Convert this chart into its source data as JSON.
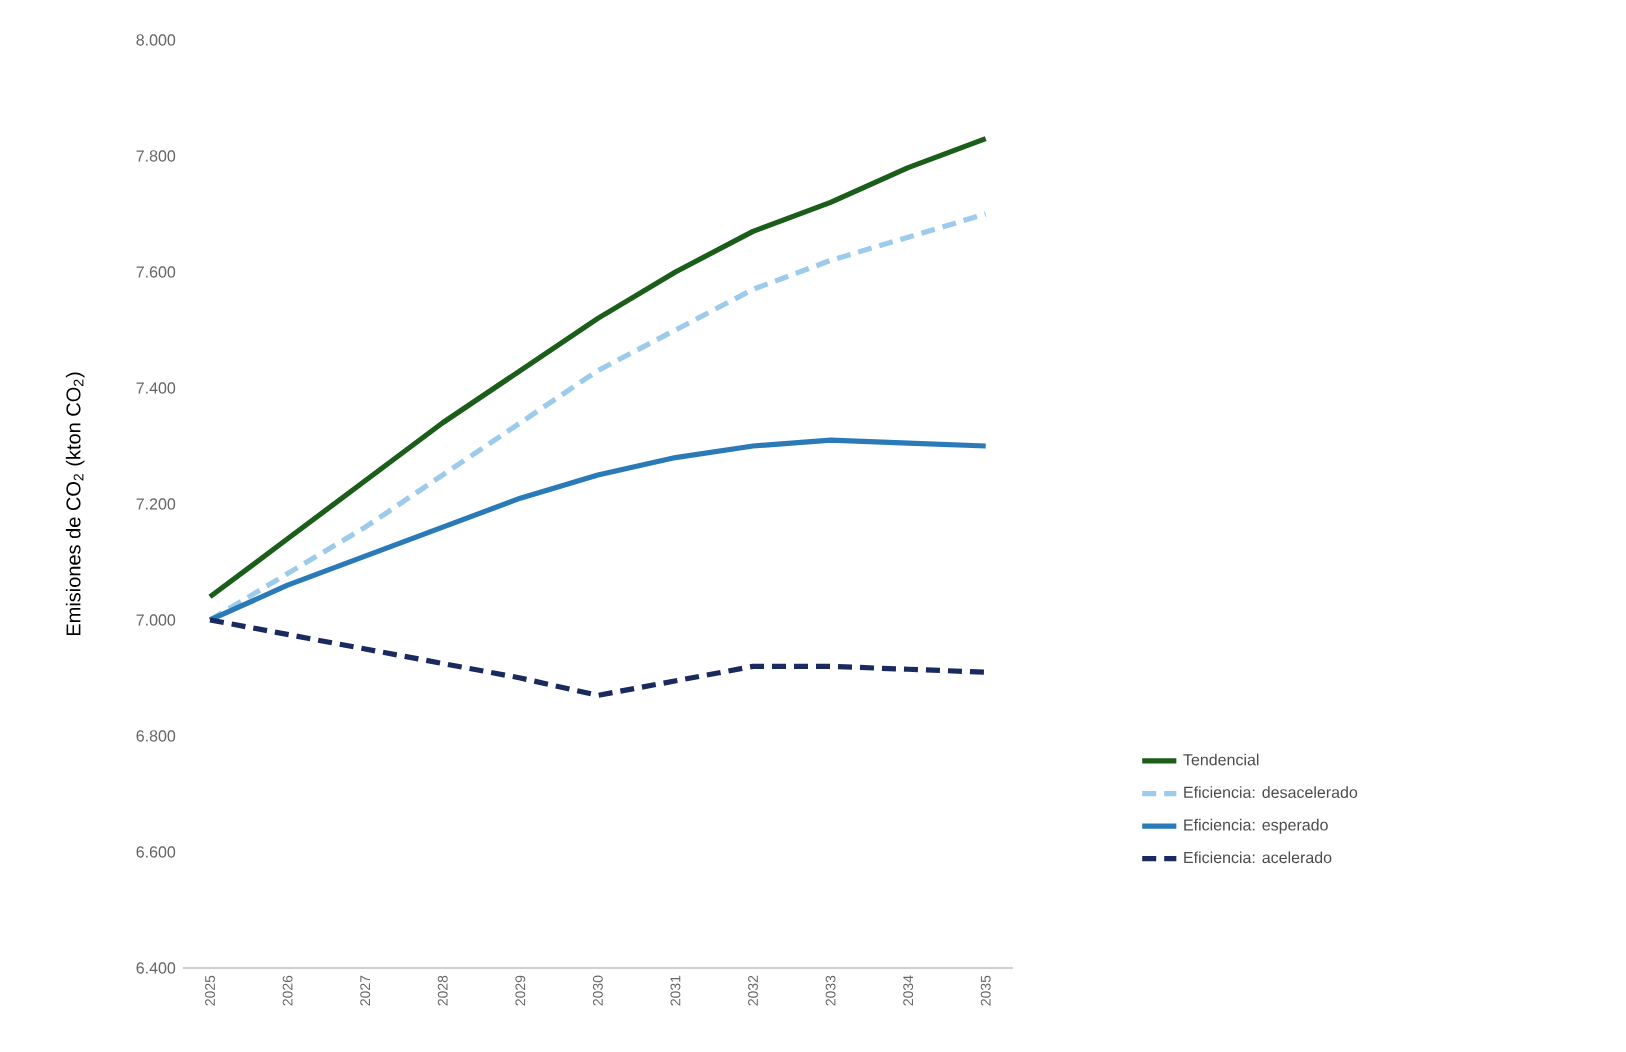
{
  "chart_data": {
    "type": "line",
    "ylabel": "Emisiones de CO$_{2}$ (kton CO$_{2}$)",
    "categories": [
      "2025",
      "2026",
      "2027",
      "2028",
      "2029",
      "2030",
      "2031",
      "2032",
      "2033",
      "2034",
      "2035"
    ],
    "series": [
      {
        "name": "Tendencial",
        "color": "#1a5e1a",
        "line_style": "solid",
        "values": [
          7040,
          7140,
          7240,
          7340,
          7430,
          7520,
          7600,
          7670,
          7720,
          7780,
          7830
        ]
      },
      {
        "name": "Eficiencia: desacelerado",
        "color": "#9dcbeb",
        "line_style": "dashed",
        "values": [
          7000,
          7080,
          7160,
          7250,
          7340,
          7430,
          7500,
          7570,
          7620,
          7660,
          7700
        ]
      },
      {
        "name": "Eficiencia: esperado",
        "color": "#2a7ab8",
        "line_style": "solid",
        "values": [
          7000,
          7060,
          7110,
          7160,
          7210,
          7250,
          7280,
          7300,
          7310,
          7305,
          7300
        ]
      },
      {
        "name": "Eficiencia: acelerado",
        "color": "#1a2a5e",
        "line_style": "dashed",
        "values": [
          7000,
          6975,
          6950,
          6925,
          6900,
          6870,
          6895,
          6920,
          6920,
          6915,
          6910
        ]
      }
    ],
    "ylim": [
      6400,
      8000
    ],
    "yticks": [
      {
        "value": 6400,
        "label": "6.400"
      },
      {
        "value": 6600,
        "label": "6.600"
      },
      {
        "value": 6800,
        "label": "6.800"
      },
      {
        "value": 7000,
        "label": "7.000"
      },
      {
        "value": 7200,
        "label": "7.200"
      },
      {
        "value": 7400,
        "label": "7.400"
      },
      {
        "value": 7600,
        "label": "7.600"
      },
      {
        "value": 7800,
        "label": "7.800"
      },
      {
        "value": 8000,
        "label": "8.000"
      }
    ],
    "grid": false,
    "legend": "right",
    "marker": "none"
  }
}
